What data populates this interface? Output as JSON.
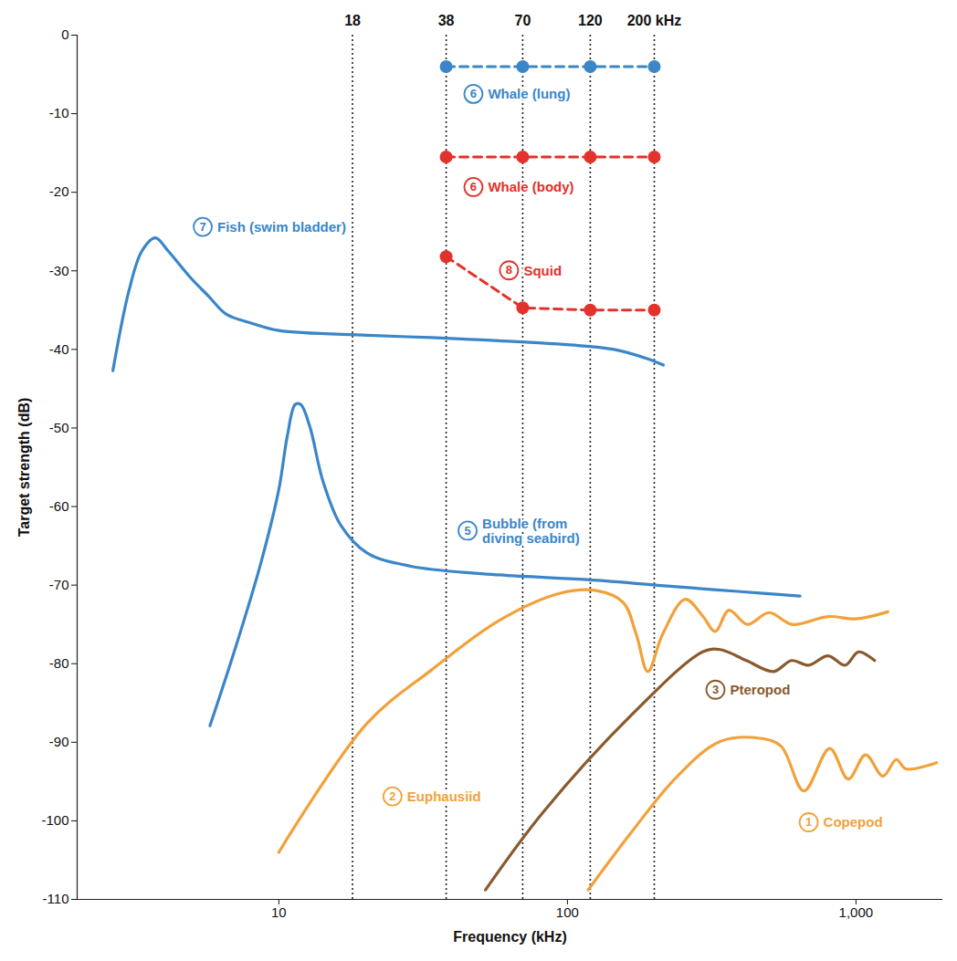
{
  "chart_data": {
    "type": "line",
    "x_label": "Frequency (kHz)",
    "y_label": "Target strength (dB)",
    "log": "x",
    "grid": false,
    "xlim": [
      2,
      2000
    ],
    "xticks": [
      10,
      100,
      {
        "value": 1000,
        "label": "1,000"
      }
    ],
    "ylim": [
      -110,
      0
    ],
    "yticks": [
      -110,
      -100,
      -90,
      -80,
      -70,
      -60,
      -50,
      -40,
      -30,
      -20,
      -10,
      0
    ],
    "reference_lines": [
      {
        "value": 18,
        "label": "18"
      },
      {
        "value": 38,
        "label": "38"
      },
      {
        "value": 70,
        "label": "70"
      },
      {
        "value": 120,
        "label": "120"
      },
      {
        "value": 200,
        "label": "200 kHz"
      }
    ],
    "series": [
      {
        "name": "Whale (lung)",
        "number": 6,
        "color": "#3a86c8",
        "line_style": "dashed",
        "marker": "circle",
        "x": [
          38,
          70,
          120,
          200
        ],
        "values": [
          -4,
          -4,
          -4,
          -4
        ]
      },
      {
        "name": "Whale (body)",
        "number": 6,
        "color": "#e3312b",
        "line_style": "dashed",
        "marker": "circle",
        "x": [
          38,
          70,
          120,
          200
        ],
        "values": [
          -15.5,
          -15.5,
          -15.5,
          -15.5
        ]
      },
      {
        "name": "Squid",
        "number": 8,
        "color": "#e3312b",
        "line_style": "dashed",
        "marker": "circle",
        "x": [
          38,
          70,
          120,
          200
        ],
        "values": [
          -28.2,
          -34.7,
          -35,
          -35
        ]
      },
      {
        "name": "Fish (swim bladder)",
        "number": 7,
        "color": "#3a86c8",
        "line_style": "solid",
        "x": [
          2.66,
          3.02,
          3.35,
          3.73,
          4.14,
          4.95,
          5.7,
          6.56,
          8.1,
          10,
          20.2,
          33.8,
          58,
          100,
          145,
          190,
          215
        ],
        "values": [
          -42.7,
          -32.6,
          -27.5,
          -25.8,
          -27.5,
          -30.9,
          -33.2,
          -35.5,
          -36.7,
          -37.6,
          -38.2,
          -38.5,
          -38.9,
          -39.4,
          -40,
          -41.2,
          -42
        ]
      },
      {
        "name": "Bubble (from diving seabird)",
        "number": 5,
        "color": "#3a86c8",
        "line_style": "solid",
        "x": [
          5.77,
          7,
          8.69,
          10,
          10.7,
          11.4,
          11.9,
          12.8,
          14.2,
          16.4,
          20.2,
          28.7,
          58,
          117,
          238,
          389,
          640
        ],
        "values": [
          -87.9,
          -78.5,
          -67,
          -57.8,
          -51,
          -47,
          -47,
          -49.8,
          -56.7,
          -62.4,
          -65.9,
          -67.6,
          -68.7,
          -69.3,
          -70.2,
          -70.8,
          -71.4
        ]
      },
      {
        "name": "Euphausiid",
        "number": 2,
        "color": "#f2a13a",
        "line_style": "solid",
        "x": [
          10,
          20.2,
          33.8,
          58,
          95,
          126,
          156,
          173,
          190,
          214,
          256,
          294,
          325,
          363,
          420,
          500,
          600,
          800,
          1000,
          1290
        ],
        "values": [
          -104,
          -87.6,
          -80.8,
          -74.5,
          -71,
          -70.7,
          -72.2,
          -76.2,
          -81,
          -76.2,
          -71.8,
          -73.9,
          -75.9,
          -73.2,
          -75,
          -73.5,
          -75,
          -74,
          -74.3,
          -73.4
        ]
      },
      {
        "name": "Pteropod",
        "number": 3,
        "color": "#8a5a2e",
        "line_style": "solid",
        "x": [
          52,
          82,
          167,
          294,
          338,
          417,
          518,
          598,
          685,
          800,
          917,
          1020,
          1160
        ],
        "values": [
          -108.8,
          -99,
          -86.5,
          -78.5,
          -78.2,
          -79.6,
          -81,
          -79.6,
          -80.2,
          -79,
          -80.2,
          -78.5,
          -79.6
        ]
      },
      {
        "name": "Copepod",
        "number": 1,
        "color": "#f2a13a",
        "line_style": "solid",
        "x": [
          118,
          167,
          238,
          338,
          466,
          550,
          660,
          811,
          940,
          1080,
          1240,
          1380,
          1490,
          1900
        ],
        "values": [
          -108.8,
          -101.4,
          -94.5,
          -89.9,
          -89.5,
          -90.5,
          -96.2,
          -90.8,
          -94.7,
          -91.6,
          -94.3,
          -92.2,
          -93.4,
          -92.6
        ]
      }
    ]
  }
}
